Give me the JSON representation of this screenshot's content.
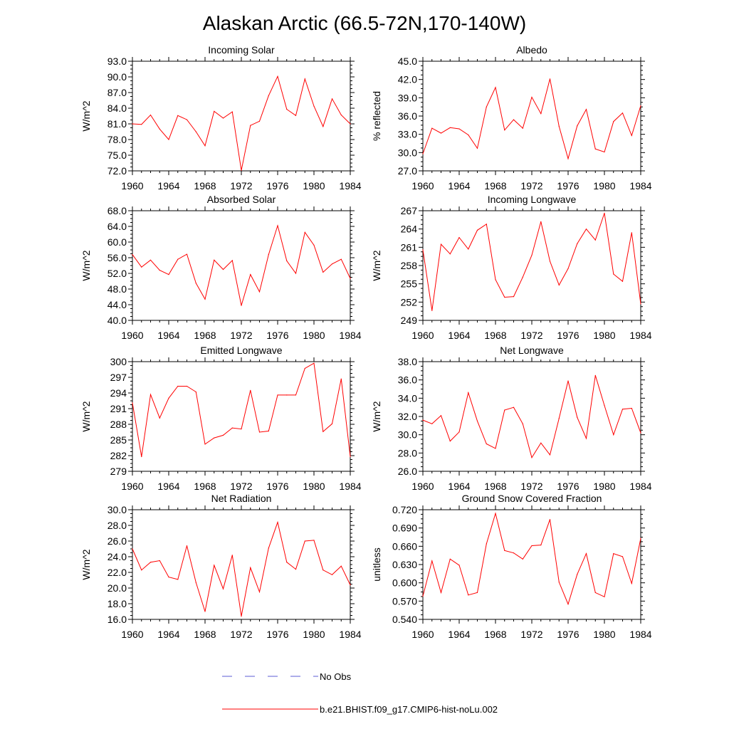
{
  "title": "Alaskan Arctic (66.5-72N,170-140W)",
  "legend": {
    "entries": [
      {
        "label": "No Obs",
        "style": "dashed",
        "color": "#5b5bd6"
      },
      {
        "label": "b.e21.BHIST.f09_g17.CMIP6-hist-noLu.002",
        "style": "solid",
        "color": "#ff0000"
      }
    ]
  },
  "line_color": "#ff0000",
  "chart_data": [
    {
      "type": "line",
      "title": "Incoming Solar",
      "ylabel": "W/m^2",
      "xlim": [
        1960,
        1984
      ],
      "ylim": [
        72.0,
        93.0
      ],
      "xticks": [
        "1960",
        "1964",
        "1968",
        "1972",
        "1976",
        "1980",
        "1984"
      ],
      "yticks": [
        "72.0",
        "75.0",
        "78.0",
        "81.0",
        "84.0",
        "87.0",
        "90.0",
        "93.0"
      ],
      "x": [
        1960,
        1961,
        1962,
        1963,
        1964,
        1965,
        1966,
        1967,
        1968,
        1969,
        1970,
        1971,
        1972,
        1973,
        1974,
        1975,
        1976,
        1977,
        1978,
        1979,
        1980,
        1981,
        1982,
        1983,
        1984
      ],
      "series": [
        {
          "name": "b.e21.BHIST.f09_g17.CMIP6-hist-noLu.002",
          "values": [
            81.0,
            80.9,
            82.7,
            80.0,
            78.0,
            82.6,
            81.8,
            79.5,
            76.8,
            83.4,
            82.1,
            83.3,
            72.1,
            80.7,
            81.5,
            86.4,
            90.1,
            83.8,
            82.6,
            89.6,
            84.4,
            80.5,
            85.8,
            82.7,
            81.0
          ]
        }
      ]
    },
    {
      "type": "line",
      "title": "Albedo",
      "ylabel": "% reflected",
      "xlim": [
        1960,
        1984
      ],
      "ylim": [
        27.0,
        45.0
      ],
      "xticks": [
        "1960",
        "1964",
        "1968",
        "1972",
        "1976",
        "1980",
        "1984"
      ],
      "yticks": [
        "27.0",
        "30.0",
        "33.0",
        "36.0",
        "39.0",
        "42.0",
        "45.0"
      ],
      "x": [
        1960,
        1961,
        1962,
        1963,
        1964,
        1965,
        1966,
        1967,
        1968,
        1969,
        1970,
        1971,
        1972,
        1973,
        1974,
        1975,
        1976,
        1977,
        1978,
        1979,
        1980,
        1981,
        1982,
        1983,
        1984
      ],
      "series": [
        {
          "name": "b.e21.BHIST.f09_g17.CMIP6-hist-noLu.002",
          "values": [
            29.8,
            34.0,
            33.2,
            34.1,
            33.9,
            32.9,
            30.7,
            37.5,
            40.7,
            33.7,
            35.4,
            34.0,
            39.1,
            36.4,
            42.1,
            34.3,
            29.0,
            34.4,
            37.1,
            30.6,
            30.1,
            35.1,
            36.5,
            32.8,
            37.7
          ]
        }
      ]
    },
    {
      "type": "line",
      "title": "Absorbed Solar",
      "ylabel": "W/m^2",
      "xlim": [
        1960,
        1984
      ],
      "ylim": [
        40.0,
        68.0
      ],
      "xticks": [
        "1960",
        "1964",
        "1968",
        "1972",
        "1976",
        "1980",
        "1984"
      ],
      "yticks": [
        "40.0",
        "44.0",
        "48.0",
        "52.0",
        "56.0",
        "60.0",
        "64.0",
        "68.0"
      ],
      "x": [
        1960,
        1961,
        1962,
        1963,
        1964,
        1965,
        1966,
        1967,
        1968,
        1969,
        1970,
        1971,
        1972,
        1973,
        1974,
        1975,
        1976,
        1977,
        1978,
        1979,
        1980,
        1981,
        1982,
        1983,
        1984
      ],
      "series": [
        {
          "name": "b.e21.BHIST.f09_g17.CMIP6-hist-noLu.002",
          "values": [
            56.8,
            53.6,
            55.4,
            52.8,
            51.7,
            55.6,
            56.9,
            49.5,
            45.4,
            55.4,
            53.0,
            55.3,
            43.8,
            51.7,
            47.3,
            56.8,
            64.2,
            55.2,
            52.0,
            62.5,
            59.2,
            52.3,
            54.4,
            55.6,
            50.7
          ]
        }
      ]
    },
    {
      "type": "line",
      "title": "Incoming Longwave",
      "ylabel": "W/m^2",
      "xlim": [
        1960,
        1984
      ],
      "ylim": [
        249,
        267
      ],
      "xticks": [
        "1960",
        "1964",
        "1968",
        "1972",
        "1976",
        "1980",
        "1984"
      ],
      "yticks": [
        "249",
        "252",
        "255",
        "258",
        "261",
        "264",
        "267"
      ],
      "x": [
        1960,
        1961,
        1962,
        1963,
        1964,
        1965,
        1966,
        1967,
        1968,
        1969,
        1970,
        1971,
        1972,
        1973,
        1974,
        1975,
        1976,
        1977,
        1978,
        1979,
        1980,
        1981,
        1982,
        1983,
        1984
      ],
      "series": [
        {
          "name": "b.e21.BHIST.f09_g17.CMIP6-hist-noLu.002",
          "values": [
            260.6,
            250.6,
            261.5,
            259.9,
            262.6,
            260.7,
            263.8,
            264.8,
            255.7,
            252.8,
            252.9,
            256.1,
            259.7,
            265.2,
            258.7,
            254.8,
            257.5,
            261.6,
            264.0,
            262.2,
            266.6,
            256.6,
            255.4,
            263.4,
            251.7
          ]
        }
      ]
    },
    {
      "type": "line",
      "title": "Emitted Longwave",
      "ylabel": "W/m^2",
      "xlim": [
        1960,
        1984
      ],
      "ylim": [
        279,
        300
      ],
      "xticks": [
        "1960",
        "1964",
        "1968",
        "1972",
        "1976",
        "1980",
        "1984"
      ],
      "yticks": [
        "279",
        "282",
        "285",
        "288",
        "291",
        "294",
        "297",
        "300"
      ],
      "x": [
        1960,
        1961,
        1962,
        1963,
        1964,
        1965,
        1966,
        1967,
        1968,
        1969,
        1970,
        1971,
        1972,
        1973,
        1974,
        1975,
        1976,
        1977,
        1978,
        1979,
        1980,
        1981,
        1982,
        1983,
        1984
      ],
      "series": [
        {
          "name": "b.e21.BHIST.f09_g17.CMIP6-hist-noLu.002",
          "values": [
            292.1,
            281.8,
            293.7,
            289.2,
            293.0,
            295.3,
            295.3,
            294.2,
            284.2,
            285.4,
            285.9,
            287.3,
            287.1,
            294.5,
            286.5,
            286.7,
            293.6,
            293.6,
            293.6,
            298.7,
            299.7,
            286.6,
            288.1,
            296.7,
            281.8
          ]
        }
      ]
    },
    {
      "type": "line",
      "title": "Net Longwave",
      "ylabel": "W/m^2",
      "xlim": [
        1960,
        1984
      ],
      "ylim": [
        26.0,
        38.0
      ],
      "xticks": [
        "1960",
        "1964",
        "1968",
        "1972",
        "1976",
        "1980",
        "1984"
      ],
      "yticks": [
        "26.0",
        "28.0",
        "30.0",
        "32.0",
        "34.0",
        "36.0",
        "38.0"
      ],
      "x": [
        1960,
        1961,
        1962,
        1963,
        1964,
        1965,
        1966,
        1967,
        1968,
        1969,
        1970,
        1971,
        1972,
        1973,
        1974,
        1975,
        1976,
        1977,
        1978,
        1979,
        1980,
        1981,
        1982,
        1983,
        1984
      ],
      "series": [
        {
          "name": "b.e21.BHIST.f09_g17.CMIP6-hist-noLu.002",
          "values": [
            31.6,
            31.2,
            32.1,
            29.3,
            30.3,
            34.6,
            31.5,
            29.0,
            28.5,
            32.7,
            33.0,
            31.2,
            27.5,
            29.1,
            27.8,
            31.8,
            35.9,
            31.9,
            29.6,
            36.5,
            33.2,
            30.0,
            32.8,
            32.9,
            30.2
          ]
        }
      ]
    },
    {
      "type": "line",
      "title": "Net Radiation",
      "ylabel": "W/m^2",
      "xlim": [
        1960,
        1984
      ],
      "ylim": [
        16.0,
        30.0
      ],
      "xticks": [
        "1960",
        "1964",
        "1968",
        "1972",
        "1976",
        "1980",
        "1984"
      ],
      "yticks": [
        "16.0",
        "18.0",
        "20.0",
        "22.0",
        "24.0",
        "26.0",
        "28.0",
        "30.0"
      ],
      "x": [
        1960,
        1961,
        1962,
        1963,
        1964,
        1965,
        1966,
        1967,
        1968,
        1969,
        1970,
        1971,
        1972,
        1973,
        1974,
        1975,
        1976,
        1977,
        1978,
        1979,
        1980,
        1981,
        1982,
        1983,
        1984
      ],
      "series": [
        {
          "name": "b.e21.BHIST.f09_g17.CMIP6-hist-noLu.002",
          "values": [
            25.0,
            22.3,
            23.3,
            23.5,
            21.4,
            21.1,
            25.4,
            20.7,
            17.0,
            22.9,
            19.9,
            24.2,
            16.4,
            22.6,
            19.5,
            25.1,
            28.4,
            23.3,
            22.4,
            26.0,
            26.1,
            22.3,
            21.7,
            22.8,
            20.4
          ]
        }
      ]
    },
    {
      "type": "line",
      "title": "Ground Snow Covered Fraction",
      "ylabel": "unitless",
      "xlim": [
        1960,
        1984
      ],
      "ylim": [
        0.54,
        0.72
      ],
      "xticks": [
        "1960",
        "1964",
        "1968",
        "1972",
        "1976",
        "1980",
        "1984"
      ],
      "yticks": [
        "0.540",
        "0.570",
        "0.600",
        "0.630",
        "0.660",
        "0.690",
        "0.720"
      ],
      "x": [
        1960,
        1961,
        1962,
        1963,
        1964,
        1965,
        1966,
        1967,
        1968,
        1969,
        1970,
        1971,
        1972,
        1973,
        1974,
        1975,
        1976,
        1977,
        1978,
        1979,
        1980,
        1981,
        1982,
        1983,
        1984
      ],
      "series": [
        {
          "name": "b.e21.BHIST.f09_g17.CMIP6-hist-noLu.002",
          "values": [
            0.578,
            0.636,
            0.584,
            0.639,
            0.629,
            0.58,
            0.584,
            0.664,
            0.714,
            0.653,
            0.649,
            0.639,
            0.661,
            0.662,
            0.704,
            0.601,
            0.565,
            0.614,
            0.648,
            0.584,
            0.577,
            0.648,
            0.643,
            0.599,
            0.673
          ]
        }
      ]
    }
  ]
}
